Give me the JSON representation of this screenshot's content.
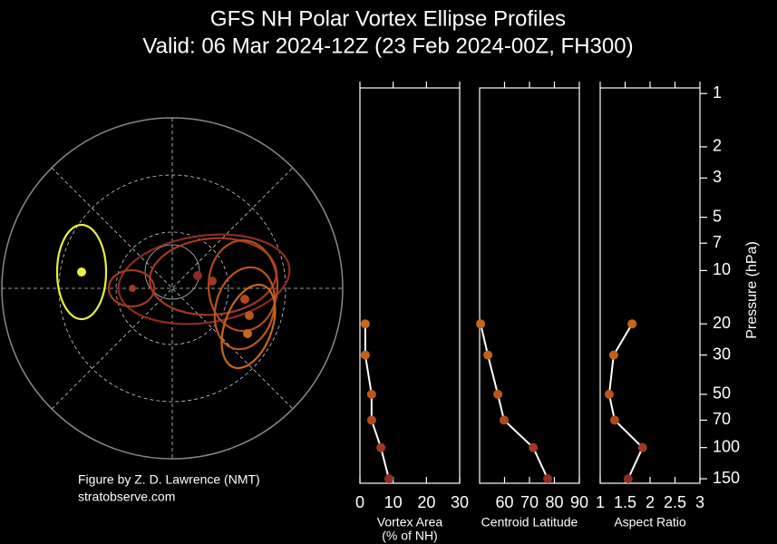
{
  "header": {
    "title": "GFS NH Polar Vortex Ellipse Profiles",
    "subtitle": "Valid: 06 Mar 2024-12Z  (23 Feb 2024-00Z, FH300)"
  },
  "footer": {
    "credit": "Figure by Z. D. Lawrence (NMT)",
    "site": "stratobserve.com"
  },
  "chart_data": [
    {
      "type": "profile",
      "xlabel": [
        "Vortex Area",
        "(% of NH)"
      ],
      "xlim": [
        0,
        30
      ],
      "xticks": [
        0,
        10,
        20,
        30
      ],
      "ylim": [
        159,
        0.93
      ],
      "log_y": true,
      "line_color": "#ffffff",
      "y": [
        20,
        30,
        50,
        70,
        100,
        150
      ],
      "values": [
        1.6,
        1.6,
        3.5,
        3.5,
        6.3,
        8.7
      ],
      "colors": [
        "#c8661a",
        "#c2611a",
        "#b8561c",
        "#b04a1e",
        "#a03a22",
        "#8c2c24"
      ]
    },
    {
      "type": "profile",
      "xlabel": [
        "Centroid Latitude"
      ],
      "xlim": [
        50,
        90
      ],
      "xticks": [
        60,
        70,
        80,
        90
      ],
      "ylim": [
        159,
        0.93
      ],
      "log_y": true,
      "line_color": "#ffffff",
      "y": [
        20,
        30,
        50,
        70,
        100,
        150
      ],
      "values": [
        50.4,
        53.3,
        57.3,
        59.8,
        71.5,
        77.3
      ],
      "colors": [
        "#c8661a",
        "#c2611a",
        "#b8561c",
        "#b04a1e",
        "#a03a22",
        "#8c2c24"
      ]
    },
    {
      "type": "profile",
      "xlabel": [
        "Aspect Ratio"
      ],
      "xlim": [
        1,
        3
      ],
      "xticks": [
        1,
        1.5,
        2,
        2.5,
        3
      ],
      "ylim": [
        159,
        0.93
      ],
      "log_y": true,
      "line_color": "#ffffff",
      "ylabel": "Pressure (hPa)",
      "yticks": [
        1,
        2,
        3,
        5,
        7,
        10,
        20,
        30,
        50,
        70,
        100,
        150
      ],
      "y": [
        20,
        30,
        50,
        70,
        100,
        150
      ],
      "values": [
        1.64,
        1.27,
        1.18,
        1.29,
        1.85,
        1.56
      ],
      "colors": [
        "#c8661a",
        "#c2611a",
        "#b8561c",
        "#b04a1e",
        "#a03a22",
        "#8c2c24"
      ]
    }
  ]
}
